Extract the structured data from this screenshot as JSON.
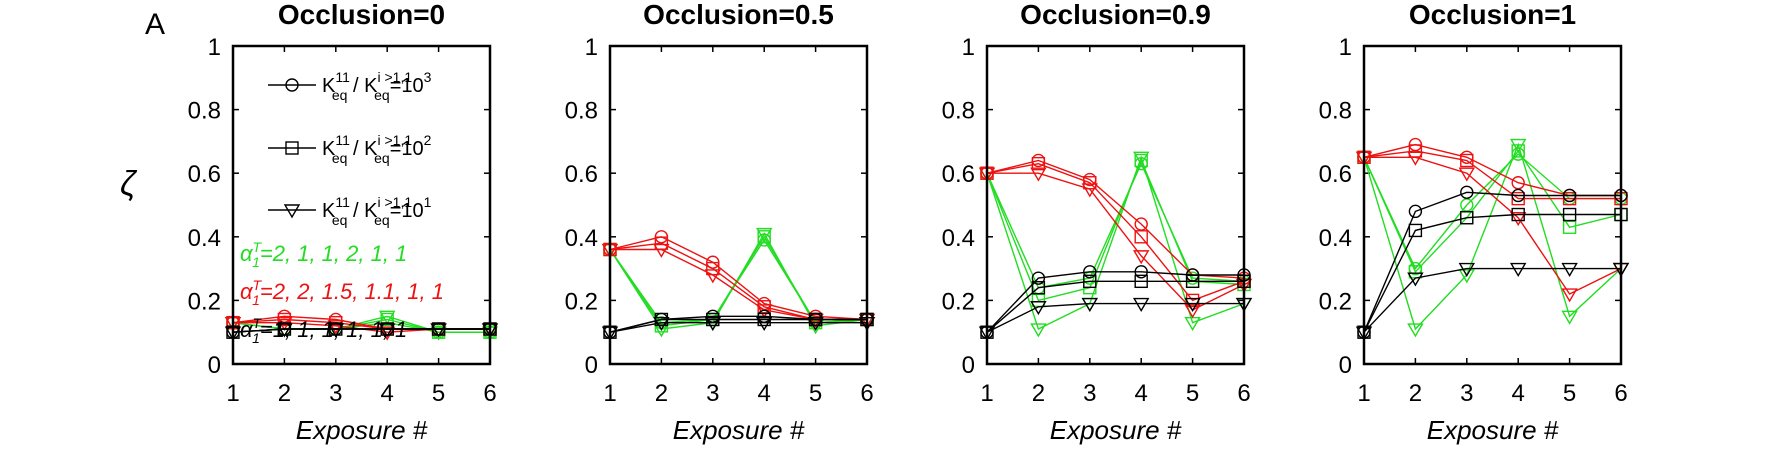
{
  "chart_data": {
    "type": "line",
    "panel_letter": "A",
    "ylabel": "ζ",
    "xlabel": "Exposure #",
    "x": [
      1,
      2,
      3,
      4,
      5,
      6
    ],
    "xticks": [
      "1",
      "2",
      "3",
      "4",
      "5",
      "6"
    ],
    "ylim": [
      0,
      1
    ],
    "yticks": [
      "0",
      "0.2",
      "0.4",
      "0.6",
      "0.8",
      "1"
    ],
    "legend": {
      "placement": "top-left (first panel)",
      "entries": [
        {
          "marker": "circle",
          "prefix": "K",
          "sub1": "eq",
          "sup1": "11",
          "mid": " / K",
          "sub2": "eq",
          "sup2": "i >1,1",
          "suffix": "=10",
          "exp": "3"
        },
        {
          "marker": "square",
          "prefix": "K",
          "sub1": "eq",
          "sup1": "11",
          "mid": " / K",
          "sub2": "eq",
          "sup2": "i >1,1",
          "suffix": "=10",
          "exp": "2"
        },
        {
          "marker": "triangle",
          "prefix": "K",
          "sub1": "eq",
          "sup1": "11",
          "mid": " / K",
          "sub2": "eq",
          "sup2": "i >1,1",
          "suffix": "=10",
          "exp": "1"
        }
      ],
      "alpha_lines": [
        {
          "color": "#22dd22",
          "sym": "α",
          "sub": "1",
          "sup": "T",
          "text": "=2, 1, 1, 2, 1, 1"
        },
        {
          "color": "#ee1111",
          "sym": "α",
          "sub": "1",
          "sup": "T",
          "text": "=2, 2, 1.5, 1.1, 1, 1"
        },
        {
          "color": "#000000",
          "sym": "α",
          "sub": "1",
          "sup": "T",
          "text": "=1, 1, 1, 1, 1, 1"
        }
      ]
    },
    "colors": {
      "green": "#22dd22",
      "red": "#ee1111",
      "black": "#000000"
    },
    "panels": [
      {
        "title": "Occlusion=0",
        "series": [
          {
            "color": "green",
            "marker": "circle",
            "values": [
              0.13,
              0.11,
              0.11,
              0.13,
              0.1,
              0.1
            ]
          },
          {
            "color": "green",
            "marker": "square",
            "values": [
              0.13,
              0.11,
              0.11,
              0.14,
              0.1,
              0.1
            ]
          },
          {
            "color": "green",
            "marker": "triangle",
            "values": [
              0.13,
              0.11,
              0.11,
              0.15,
              0.1,
              0.1
            ]
          },
          {
            "color": "red",
            "marker": "circle",
            "values": [
              0.13,
              0.15,
              0.14,
              0.11,
              0.11,
              0.11
            ]
          },
          {
            "color": "red",
            "marker": "square",
            "values": [
              0.13,
              0.14,
              0.13,
              0.11,
              0.11,
              0.11
            ]
          },
          {
            "color": "red",
            "marker": "triangle",
            "values": [
              0.13,
              0.13,
              0.12,
              0.1,
              0.11,
              0.11
            ]
          },
          {
            "color": "black",
            "marker": "circle",
            "values": [
              0.1,
              0.11,
              0.11,
              0.11,
              0.11,
              0.11
            ]
          },
          {
            "color": "black",
            "marker": "square",
            "values": [
              0.1,
              0.11,
              0.11,
              0.11,
              0.11,
              0.11
            ]
          },
          {
            "color": "black",
            "marker": "triangle",
            "values": [
              0.1,
              0.11,
              0.11,
              0.11,
              0.11,
              0.11
            ]
          }
        ]
      },
      {
        "title": "Occlusion=0.5",
        "series": [
          {
            "color": "green",
            "marker": "circle",
            "values": [
              0.36,
              0.13,
              0.14,
              0.39,
              0.13,
              0.14
            ]
          },
          {
            "color": "green",
            "marker": "square",
            "values": [
              0.36,
              0.12,
              0.14,
              0.4,
              0.13,
              0.14
            ]
          },
          {
            "color": "green",
            "marker": "triangle",
            "values": [
              0.36,
              0.11,
              0.13,
              0.41,
              0.12,
              0.14
            ]
          },
          {
            "color": "red",
            "marker": "circle",
            "values": [
              0.36,
              0.4,
              0.32,
              0.19,
              0.15,
              0.14
            ]
          },
          {
            "color": "red",
            "marker": "square",
            "values": [
              0.36,
              0.38,
              0.3,
              0.18,
              0.14,
              0.14
            ]
          },
          {
            "color": "red",
            "marker": "triangle",
            "values": [
              0.36,
              0.36,
              0.28,
              0.17,
              0.14,
              0.14
            ]
          },
          {
            "color": "black",
            "marker": "circle",
            "values": [
              0.1,
              0.14,
              0.15,
              0.15,
              0.14,
              0.14
            ]
          },
          {
            "color": "black",
            "marker": "square",
            "values": [
              0.1,
              0.14,
              0.14,
              0.14,
              0.14,
              0.14
            ]
          },
          {
            "color": "black",
            "marker": "triangle",
            "values": [
              0.1,
              0.13,
              0.13,
              0.13,
              0.13,
              0.13
            ]
          }
        ]
      },
      {
        "title": "Occlusion=0.9",
        "series": [
          {
            "color": "green",
            "marker": "circle",
            "values": [
              0.6,
              0.24,
              0.27,
              0.63,
              0.27,
              0.26
            ]
          },
          {
            "color": "green",
            "marker": "square",
            "values": [
              0.6,
              0.2,
              0.24,
              0.64,
              0.26,
              0.25
            ]
          },
          {
            "color": "green",
            "marker": "triangle",
            "values": [
              0.6,
              0.11,
              0.19,
              0.65,
              0.13,
              0.19
            ]
          },
          {
            "color": "red",
            "marker": "circle",
            "values": [
              0.6,
              0.64,
              0.58,
              0.44,
              0.28,
              0.27
            ]
          },
          {
            "color": "red",
            "marker": "square",
            "values": [
              0.6,
              0.63,
              0.57,
              0.4,
              0.2,
              0.26
            ]
          },
          {
            "color": "red",
            "marker": "triangle",
            "values": [
              0.6,
              0.6,
              0.55,
              0.34,
              0.17,
              0.25
            ]
          },
          {
            "color": "black",
            "marker": "circle",
            "values": [
              0.1,
              0.27,
              0.29,
              0.29,
              0.28,
              0.28
            ]
          },
          {
            "color": "black",
            "marker": "square",
            "values": [
              0.1,
              0.24,
              0.26,
              0.26,
              0.26,
              0.26
            ]
          },
          {
            "color": "black",
            "marker": "triangle",
            "values": [
              0.1,
              0.18,
              0.19,
              0.19,
              0.19,
              0.19
            ]
          }
        ]
      },
      {
        "title": "Occlusion=1",
        "series": [
          {
            "color": "green",
            "marker": "circle",
            "values": [
              0.65,
              0.3,
              0.5,
              0.66,
              0.52,
              0.52
            ]
          },
          {
            "color": "green",
            "marker": "square",
            "values": [
              0.65,
              0.29,
              0.46,
              0.67,
              0.43,
              0.47
            ]
          },
          {
            "color": "green",
            "marker": "triangle",
            "values": [
              0.65,
              0.11,
              0.28,
              0.69,
              0.15,
              0.3
            ]
          },
          {
            "color": "red",
            "marker": "circle",
            "values": [
              0.65,
              0.69,
              0.65,
              0.57,
              0.53,
              0.53
            ]
          },
          {
            "color": "red",
            "marker": "square",
            "values": [
              0.65,
              0.67,
              0.64,
              0.52,
              0.52,
              0.52
            ]
          },
          {
            "color": "red",
            "marker": "triangle",
            "values": [
              0.65,
              0.65,
              0.6,
              0.46,
              0.22,
              0.3
            ]
          },
          {
            "color": "black",
            "marker": "circle",
            "values": [
              0.1,
              0.48,
              0.54,
              0.53,
              0.53,
              0.53
            ]
          },
          {
            "color": "black",
            "marker": "square",
            "values": [
              0.1,
              0.42,
              0.46,
              0.47,
              0.47,
              0.47
            ]
          },
          {
            "color": "black",
            "marker": "triangle",
            "values": [
              0.1,
              0.27,
              0.3,
              0.3,
              0.3,
              0.3
            ]
          }
        ]
      }
    ]
  }
}
